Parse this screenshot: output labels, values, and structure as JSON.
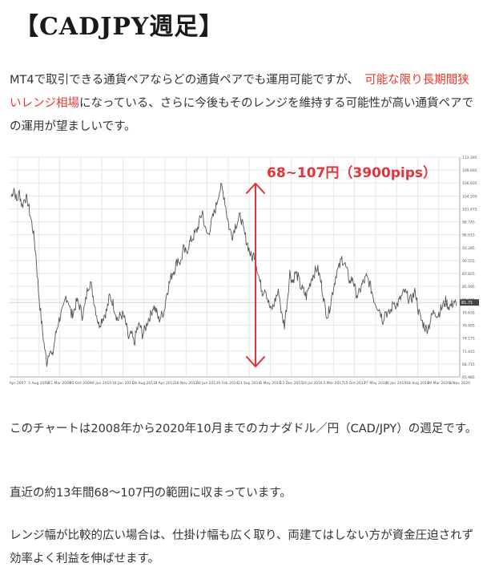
{
  "title": "【CADJPY週足】",
  "intro": {
    "part1": "MT4で取引できる通貨ペアならどの通貨ペアでも運用可能ですが、　",
    "highlight": "可能な限り長期間狭いレンジ相場",
    "part2": "になっている、さらに今後もそのレンジを維持する可能性が高い通貨ペアでの運用が望ましいです。"
  },
  "chart_data": {
    "type": "line",
    "annotation": "68~107円（3900pips）",
    "price_badge": "81.71",
    "x_tick_labels": [
      "Apr 2007",
      "5 Aug 2008",
      "15 Mar 2009",
      "25 Oct 2009",
      "6 Jun 2010",
      "16 Jan 2011",
      "28 Aug 2011",
      "8 Apr 2012",
      "18 Nov 2012",
      "30 Jun 2013",
      "9 Feb 2014",
      "21 Sep 2014",
      "3 May 2015",
      "13 Dec 2015",
      "24 Jul 2016",
      "5 Mar 2017",
      "15 Oct 2017",
      "27 May 2018",
      "6 Jan 2019",
      "18 Aug 2019",
      "29 Mar 2020",
      "8 Nov 2020"
    ],
    "y_tick_labels": [
      "112.395",
      "109.665",
      "106.935",
      "104.205",
      "101.475",
      "98.745",
      "96.015",
      "93.285",
      "90.555",
      "87.825",
      "85.095",
      "82.365",
      "79.635",
      "76.905",
      "74.175",
      "71.445",
      "68.715",
      "65.985"
    ],
    "ylim": [
      65.985,
      112.395
    ],
    "range_low": 68,
    "range_high": 107,
    "series": [
      {
        "values": [
          104,
          106,
          103,
          105,
          102,
          104,
          103,
          100,
          97,
          92,
          84,
          78,
          73,
          69,
          72,
          70,
          74,
          77,
          79,
          80,
          83,
          82,
          79,
          80,
          82,
          81,
          79,
          81,
          85,
          86,
          83,
          80,
          77,
          78,
          79,
          80,
          83,
          82,
          80,
          78,
          79,
          79,
          77,
          74,
          75,
          73,
          76,
          77,
          75,
          76,
          78,
          79,
          81,
          80,
          78,
          79,
          80,
          84,
          86,
          88,
          89,
          91,
          90,
          93,
          92,
          94,
          95,
          96,
          97,
          99,
          101,
          97,
          96,
          98,
          100,
          102,
          105,
          106,
          104,
          100,
          97,
          96,
          98,
          99,
          100,
          97,
          95,
          93,
          91,
          92,
          89,
          86,
          84,
          85,
          82,
          80,
          81,
          83,
          84,
          79,
          77,
          82,
          88,
          86,
          88,
          87,
          85,
          84,
          83,
          85,
          87,
          88,
          89,
          87,
          84,
          80,
          79,
          82,
          85,
          88,
          89,
          91,
          90,
          88,
          86,
          87,
          84,
          83,
          85,
          86,
          87,
          86,
          84,
          82,
          81,
          80,
          78,
          80,
          79,
          80,
          82,
          81,
          82,
          83,
          84,
          83,
          82,
          83,
          84,
          80,
          78,
          77,
          76,
          77,
          79,
          80,
          79,
          80,
          81,
          82,
          81,
          81,
          82,
          81
        ]
      }
    ]
  }
}
